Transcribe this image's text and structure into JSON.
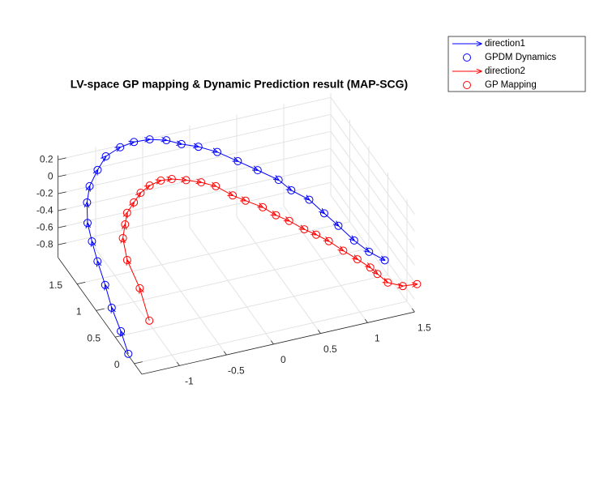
{
  "chart_data": {
    "type": "line3d",
    "title": "LV-space GP mapping & Dynamic Prediction result (MAP-SCG)",
    "xlim": [
      -1.4,
      1.5
    ],
    "ylim": [
      -0.2,
      2
    ],
    "zlim": [
      -0.95,
      0.25
    ],
    "xticks": [
      -1,
      -0.5,
      0,
      0.5,
      1,
      1.5
    ],
    "yticks": [
      0,
      0.5,
      1,
      1.5
    ],
    "zticks": [
      -0.8,
      -0.6,
      -0.4,
      -0.2,
      0,
      0.2
    ],
    "grid": true,
    "legend": "northeast-outside",
    "series": [
      {
        "name": "direction1",
        "color": "#0000ff",
        "style": "arrow",
        "x": [
          -1.39,
          -1.36,
          -1.34,
          -1.3,
          -1.26,
          -1.23,
          -1.2,
          -1.12,
          -1.04,
          -0.91,
          -0.79,
          -0.65,
          -0.54,
          -0.43,
          -0.26,
          -0.12,
          0.04,
          0.2,
          0.35,
          0.5,
          0.65,
          0.72,
          0.85,
          0.92,
          0.99,
          1.06,
          1.15,
          1.26
        ],
        "y": [
          0.18,
          0.45,
          0.74,
          1.01,
          1.31,
          1.53,
          1.72,
          1.93,
          2.06,
          2.17,
          2.25,
          2.22,
          2.13,
          1.99,
          1.97,
          1.92,
          1.87,
          1.77,
          1.6,
          1.45,
          1.27,
          1.11,
          0.96,
          0.74,
          0.54,
          0.3,
          0.13,
          -0.01
        ],
        "z": [
          -0.95,
          -0.86,
          -0.77,
          -0.68,
          -0.6,
          -0.51,
          -0.42,
          -0.33,
          -0.24,
          -0.15,
          -0.07,
          0.02,
          0.11,
          0.2,
          0.16,
          0.11,
          0.07,
          0.03,
          -0.01,
          -0.06,
          -0.1,
          -0.14,
          -0.19,
          -0.23,
          -0.27,
          -0.31,
          -0.36,
          -0.4
        ]
      },
      {
        "name": "GPDM Dynamics",
        "color": "#0000ff",
        "style": "circle",
        "x": [
          -1.39,
          -1.36,
          -1.34,
          -1.3,
          -1.26,
          -1.23,
          -1.2,
          -1.12,
          -1.04,
          -0.91,
          -0.79,
          -0.65,
          -0.54,
          -0.43,
          -0.26,
          -0.12,
          0.04,
          0.2,
          0.35,
          0.5,
          0.65,
          0.72,
          0.85,
          0.92,
          0.99,
          1.06,
          1.15,
          1.26
        ],
        "y": [
          0.18,
          0.45,
          0.74,
          1.01,
          1.31,
          1.53,
          1.72,
          1.93,
          2.06,
          2.17,
          2.25,
          2.22,
          2.13,
          1.99,
          1.97,
          1.92,
          1.87,
          1.77,
          1.6,
          1.45,
          1.27,
          1.11,
          0.96,
          0.74,
          0.54,
          0.3,
          0.13,
          -0.01
        ],
        "z": [
          -0.95,
          -0.86,
          -0.77,
          -0.68,
          -0.6,
          -0.51,
          -0.42,
          -0.33,
          -0.24,
          -0.15,
          -0.07,
          0.02,
          0.11,
          0.2,
          0.16,
          0.11,
          0.07,
          0.03,
          -0.01,
          -0.06,
          -0.1,
          -0.14,
          -0.19,
          -0.23,
          -0.27,
          -0.31,
          -0.36,
          -0.4
        ]
      },
      {
        "name": "direction2",
        "color": "#ff0000",
        "style": "arrow",
        "x": [
          -0.98,
          -0.9,
          -0.88,
          -0.82,
          -0.76,
          -0.71,
          -0.63,
          -0.55,
          -0.47,
          -0.38,
          -0.32,
          -0.18,
          -0.04,
          0.08,
          0.19,
          0.29,
          0.42,
          0.5,
          0.6,
          0.7,
          0.79,
          0.88,
          0.96,
          1.05,
          1.13,
          1.17,
          1.22,
          1.35,
          1.51
        ],
        "y": [
          0.64,
          1.09,
          1.47,
          1.73,
          1.82,
          1.89,
          1.91,
          1.93,
          1.89,
          1.82,
          1.68,
          1.65,
          1.6,
          1.51,
          1.34,
          1.25,
          1.12,
          0.97,
          0.87,
          0.72,
          0.63,
          0.52,
          0.34,
          0.19,
          0.05,
          -0.04,
          -0.19,
          -0.26,
          -0.24
        ],
        "z": [
          -0.95,
          -0.87,
          -0.78,
          -0.7,
          -0.61,
          -0.53,
          -0.44,
          -0.36,
          -0.27,
          -0.19,
          -0.1,
          -0.13,
          -0.16,
          -0.18,
          -0.21,
          -0.24,
          -0.27,
          -0.29,
          -0.32,
          -0.35,
          -0.38,
          -0.41,
          -0.43,
          -0.46,
          -0.49,
          -0.52,
          -0.54,
          -0.57,
          -0.6
        ]
      },
      {
        "name": "GP Mapping",
        "color": "#ff0000",
        "style": "circle",
        "x": [
          -0.98,
          -0.9,
          -0.88,
          -0.82,
          -0.76,
          -0.71,
          -0.63,
          -0.55,
          -0.47,
          -0.38,
          -0.32,
          -0.18,
          -0.04,
          0.08,
          0.19,
          0.29,
          0.42,
          0.5,
          0.6,
          0.7,
          0.79,
          0.88,
          0.96,
          1.05,
          1.13,
          1.17,
          1.22,
          1.35,
          1.51
        ],
        "y": [
          0.64,
          1.09,
          1.47,
          1.73,
          1.82,
          1.89,
          1.91,
          1.93,
          1.89,
          1.82,
          1.68,
          1.65,
          1.6,
          1.51,
          1.34,
          1.25,
          1.12,
          0.97,
          0.87,
          0.72,
          0.63,
          0.52,
          0.34,
          0.19,
          0.05,
          -0.04,
          -0.19,
          -0.26,
          -0.24
        ],
        "z": [
          -0.95,
          -0.87,
          -0.78,
          -0.7,
          -0.61,
          -0.53,
          -0.44,
          -0.36,
          -0.27,
          -0.19,
          -0.1,
          -0.13,
          -0.16,
          -0.18,
          -0.21,
          -0.24,
          -0.27,
          -0.29,
          -0.32,
          -0.35,
          -0.38,
          -0.41,
          -0.43,
          -0.46,
          -0.49,
          -0.52,
          -0.54,
          -0.57,
          -0.6
        ]
      }
    ]
  }
}
